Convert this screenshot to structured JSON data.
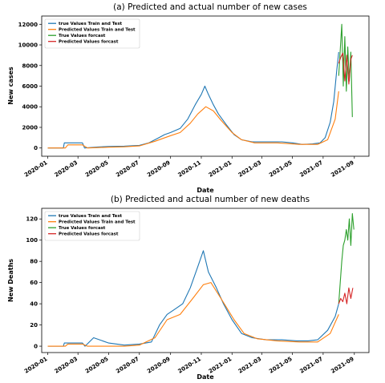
{
  "chart_data": [
    {
      "type": "line",
      "title": "(a) Predicted and actual number of new cases",
      "xlabel": "Date",
      "ylabel": "New cases",
      "x_ticks": [
        "2020-01",
        "2020-03",
        "2020-05",
        "2020-07",
        "2020-09",
        "2020-11",
        "2021-01",
        "2021-03",
        "2021-05",
        "2021-07",
        "2021-09"
      ],
      "y_ticks": [
        0,
        2000,
        4000,
        6000,
        8000,
        10000,
        12000
      ],
      "xlim": [
        "2019-12-20",
        "2021-09-30"
      ],
      "ylim": [
        -800,
        12800
      ],
      "grid": false,
      "legend": "top-left",
      "series": [
        {
          "name": "true Values Train and Test",
          "color": "#1f77b4",
          "points": [
            [
              "2020-01-01",
              0
            ],
            [
              "2020-02-01",
              0
            ],
            [
              "2020-02-03",
              500
            ],
            [
              "2020-03-10",
              500
            ],
            [
              "2020-03-14",
              0
            ],
            [
              "2020-04-10",
              100
            ],
            [
              "2020-05-01",
              150
            ],
            [
              "2020-06-01",
              180
            ],
            [
              "2020-07-01",
              260
            ],
            [
              "2020-07-20",
              500
            ],
            [
              "2020-08-05",
              900
            ],
            [
              "2020-08-20",
              1300
            ],
            [
              "2020-09-01",
              1500
            ],
            [
              "2020-09-20",
              1900
            ],
            [
              "2020-10-05",
              2800
            ],
            [
              "2020-10-20",
              4200
            ],
            [
              "2020-11-01",
              5200
            ],
            [
              "2020-11-08",
              6000
            ],
            [
              "2020-11-15",
              5200
            ],
            [
              "2020-11-25",
              4200
            ],
            [
              "2020-12-05",
              3300
            ],
            [
              "2020-12-20",
              2300
            ],
            [
              "2021-01-05",
              1300
            ],
            [
              "2021-01-20",
              800
            ],
            [
              "2021-02-10",
              600
            ],
            [
              "2021-03-10",
              600
            ],
            [
              "2021-04-10",
              600
            ],
            [
              "2021-05-01",
              500
            ],
            [
              "2021-05-20",
              350
            ],
            [
              "2021-06-10",
              400
            ],
            [
              "2021-06-25",
              500
            ],
            [
              "2021-07-05",
              1000
            ],
            [
              "2021-07-15",
              2500
            ],
            [
              "2021-07-22",
              4500
            ],
            [
              "2021-07-28",
              7500
            ],
            [
              "2021-08-01",
              9300
            ]
          ]
        },
        {
          "name": "Predicted Values Train and Test",
          "color": "#ff7f0e",
          "points": [
            [
              "2020-01-01",
              0
            ],
            [
              "2020-02-05",
              0
            ],
            [
              "2020-02-10",
              300
            ],
            [
              "2020-03-10",
              300
            ],
            [
              "2020-03-20",
              0
            ],
            [
              "2020-05-01",
              80
            ],
            [
              "2020-06-01",
              120
            ],
            [
              "2020-07-01",
              200
            ],
            [
              "2020-08-01",
              650
            ],
            [
              "2020-09-01",
              1200
            ],
            [
              "2020-09-20",
              1500
            ],
            [
              "2020-10-10",
              2400
            ],
            [
              "2020-10-25",
              3300
            ],
            [
              "2020-11-10",
              4000
            ],
            [
              "2020-11-25",
              3600
            ],
            [
              "2020-12-10",
              2700
            ],
            [
              "2021-01-01",
              1500
            ],
            [
              "2021-01-20",
              800
            ],
            [
              "2021-02-15",
              500
            ],
            [
              "2021-04-01",
              500
            ],
            [
              "2021-05-15",
              350
            ],
            [
              "2021-06-20",
              350
            ],
            [
              "2021-07-10",
              800
            ],
            [
              "2021-07-25",
              2800
            ],
            [
              "2021-08-01",
              5500
            ]
          ]
        },
        {
          "name": "True Values forcast",
          "color": "#2ca02c",
          "points": [
            [
              "2021-08-01",
              7000
            ],
            [
              "2021-08-04",
              9500
            ],
            [
              "2021-08-07",
              12000
            ],
            [
              "2021-08-10",
              6000
            ],
            [
              "2021-08-13",
              10800
            ],
            [
              "2021-08-16",
              5500
            ],
            [
              "2021-08-19",
              9800
            ],
            [
              "2021-08-22",
              6500
            ],
            [
              "2021-08-25",
              9300
            ],
            [
              "2021-08-28",
              3000
            ]
          ]
        },
        {
          "name": "Predicted Values forcast",
          "color": "#d62728",
          "points": [
            [
              "2021-08-01",
              8200
            ],
            [
              "2021-08-05",
              8800
            ],
            [
              "2021-08-09",
              9200
            ],
            [
              "2021-08-13",
              6500
            ],
            [
              "2021-08-17",
              9000
            ],
            [
              "2021-08-21",
              6200
            ],
            [
              "2021-08-25",
              8600
            ],
            [
              "2021-08-28",
              9000
            ]
          ]
        }
      ]
    },
    {
      "type": "line",
      "title": "(b) Predicted and actual number of new deaths",
      "xlabel": "Date",
      "ylabel": "New Deaths",
      "x_ticks": [
        "2020-01",
        "2020-03",
        "2020-05",
        "2020-07",
        "2020-09",
        "2020-11",
        "2021-01",
        "2021-03",
        "2021-05",
        "2021-07",
        "2021-09"
      ],
      "y_ticks": [
        0,
        20,
        40,
        60,
        80,
        100,
        120
      ],
      "xlim": [
        "2019-12-20",
        "2021-09-30"
      ],
      "ylim": [
        -6,
        130
      ],
      "grid": false,
      "legend": "top-left",
      "series": [
        {
          "name": "true Values Train and Test",
          "color": "#1f77b4",
          "points": [
            [
              "2020-01-01",
              0
            ],
            [
              "2020-02-01",
              0
            ],
            [
              "2020-02-03",
              3
            ],
            [
              "2020-03-10",
              3
            ],
            [
              "2020-03-15",
              0
            ],
            [
              "2020-04-01",
              8
            ],
            [
              "2020-05-01",
              3
            ],
            [
              "2020-06-01",
              1
            ],
            [
              "2020-07-01",
              2
            ],
            [
              "2020-07-25",
              4
            ],
            [
              "2020-08-10",
              20
            ],
            [
              "2020-08-25",
              30
            ],
            [
              "2020-09-10",
              35
            ],
            [
              "2020-09-25",
              40
            ],
            [
              "2020-10-10",
              55
            ],
            [
              "2020-10-25",
              75
            ],
            [
              "2020-11-05",
              90
            ],
            [
              "2020-11-15",
              70
            ],
            [
              "2020-12-01",
              55
            ],
            [
              "2020-12-15",
              40
            ],
            [
              "2021-01-01",
              25
            ],
            [
              "2021-01-20",
              12
            ],
            [
              "2021-02-10",
              8
            ],
            [
              "2021-03-10",
              6
            ],
            [
              "2021-04-10",
              6
            ],
            [
              "2021-05-10",
              5
            ],
            [
              "2021-06-01",
              5
            ],
            [
              "2021-06-20",
              6
            ],
            [
              "2021-07-10",
              15
            ],
            [
              "2021-07-25",
              28
            ],
            [
              "2021-08-01",
              40
            ]
          ]
        },
        {
          "name": "Predicted Values Train and Test",
          "color": "#ff7f0e",
          "points": [
            [
              "2020-01-01",
              0
            ],
            [
              "2020-02-05",
              0
            ],
            [
              "2020-02-10",
              2
            ],
            [
              "2020-03-10",
              2
            ],
            [
              "2020-03-20",
              0
            ],
            [
              "2020-06-01",
              0
            ],
            [
              "2020-07-01",
              1
            ],
            [
              "2020-08-01",
              8
            ],
            [
              "2020-08-25",
              25
            ],
            [
              "2020-09-20",
              30
            ],
            [
              "2020-10-15",
              45
            ],
            [
              "2020-11-05",
              58
            ],
            [
              "2020-11-20",
              60
            ],
            [
              "2020-12-10",
              45
            ],
            [
              "2021-01-05",
              25
            ],
            [
              "2021-01-25",
              12
            ],
            [
              "2021-02-20",
              7
            ],
            [
              "2021-04-01",
              5
            ],
            [
              "2021-05-15",
              4
            ],
            [
              "2021-06-20",
              4
            ],
            [
              "2021-07-15",
              12
            ],
            [
              "2021-08-01",
              30
            ]
          ]
        },
        {
          "name": "True Values forcast",
          "color": "#2ca02c",
          "points": [
            [
              "2021-08-01",
              40
            ],
            [
              "2021-08-04",
              60
            ],
            [
              "2021-08-07",
              80
            ],
            [
              "2021-08-10",
              95
            ],
            [
              "2021-08-13",
              100
            ],
            [
              "2021-08-16",
              110
            ],
            [
              "2021-08-19",
              100
            ],
            [
              "2021-08-22",
              120
            ],
            [
              "2021-08-25",
              95
            ],
            [
              "2021-08-28",
              125
            ],
            [
              "2021-08-31",
              110
            ]
          ]
        },
        {
          "name": "Predicted Values forcast",
          "color": "#d62728",
          "points": [
            [
              "2021-08-01",
              40
            ],
            [
              "2021-08-05",
              45
            ],
            [
              "2021-08-09",
              42
            ],
            [
              "2021-08-13",
              50
            ],
            [
              "2021-08-17",
              40
            ],
            [
              "2021-08-21",
              55
            ],
            [
              "2021-08-25",
              45
            ],
            [
              "2021-08-29",
              55
            ]
          ]
        }
      ]
    }
  ]
}
